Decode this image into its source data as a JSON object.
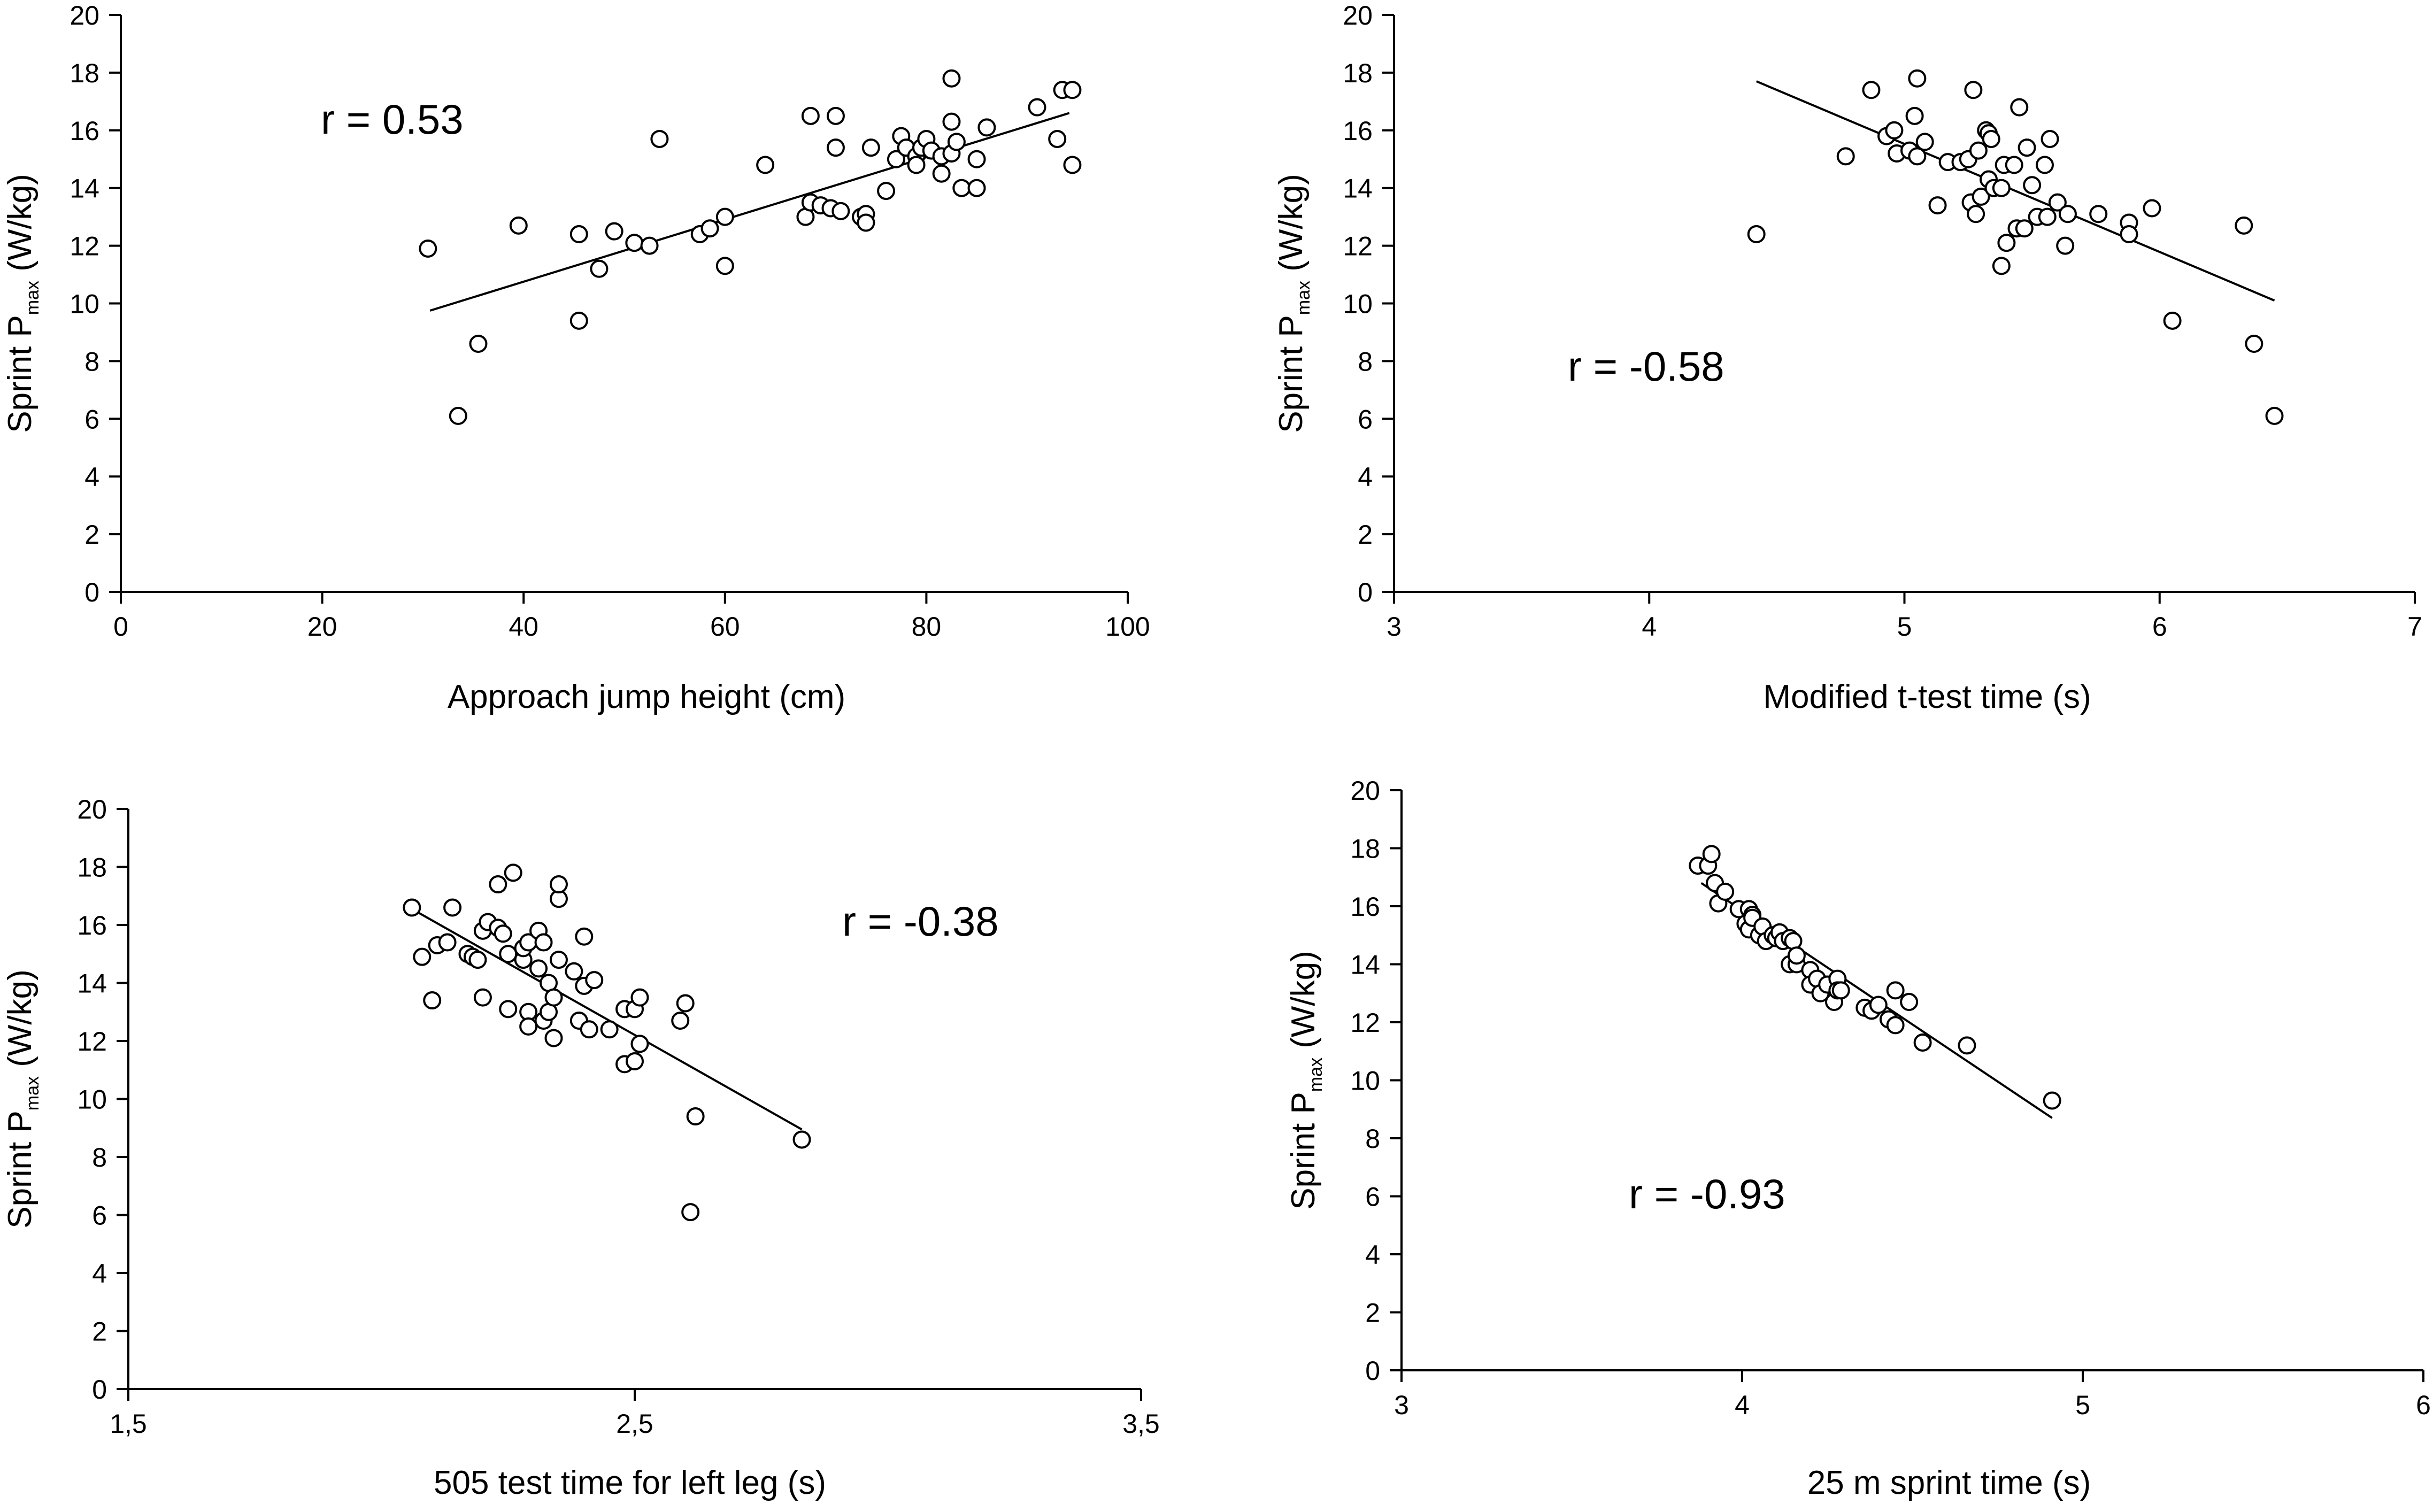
{
  "chart_data": [
    {
      "type": "scatter",
      "xlabel": "Approach jump height (cm)",
      "ylabel": "Sprint Pmax (W/kg)",
      "ylabel_main": "Sprint P",
      "ylabel_sub": "max",
      "ylabel_unit": " (W/kg)",
      "xlim": [
        0,
        100
      ],
      "ylim": [
        0,
        20
      ],
      "xticks": [
        0,
        20,
        40,
        60,
        80,
        100
      ],
      "xtick_labels": [
        "0",
        "20",
        "40",
        "60",
        "80",
        "100"
      ],
      "yticks": [
        0,
        2,
        4,
        6,
        8,
        10,
        12,
        14,
        16,
        18,
        20
      ],
      "ytick_labels": [
        "0",
        "2",
        "4",
        "6",
        "8",
        "10",
        "12",
        "14",
        "16",
        "18",
        "20"
      ],
      "annotation": "r = 0.53",
      "trendline": {
        "x": [
          30.7,
          94.2
        ],
        "y": [
          9.75,
          16.6
        ]
      },
      "points": [
        [
          30.5,
          11.9
        ],
        [
          33.5,
          6.1
        ],
        [
          35.5,
          8.6
        ],
        [
          39.5,
          12.7
        ],
        [
          45.5,
          12.4
        ],
        [
          45.5,
          9.4
        ],
        [
          47.5,
          11.2
        ],
        [
          49,
          12.5
        ],
        [
          51,
          12.1
        ],
        [
          52.5,
          12
        ],
        [
          53.5,
          15.7
        ],
        [
          57.5,
          12.4
        ],
        [
          58.5,
          12.6
        ],
        [
          60,
          13
        ],
        [
          60,
          11.3
        ],
        [
          64,
          14.8
        ],
        [
          68,
          13
        ],
        [
          68.5,
          13.5
        ],
        [
          68.5,
          16.5
        ],
        [
          69.5,
          13.4
        ],
        [
          70.5,
          13.3
        ],
        [
          71,
          16.5
        ],
        [
          71,
          15.4
        ],
        [
          71.5,
          13.2
        ],
        [
          73.5,
          13
        ],
        [
          74,
          13.1
        ],
        [
          74,
          12.8
        ],
        [
          74.5,
          15.4
        ],
        [
          76,
          13.9
        ],
        [
          77,
          15
        ],
        [
          77.5,
          15.8
        ],
        [
          78,
          15.4
        ],
        [
          79,
          15.1
        ],
        [
          79.5,
          15.4
        ],
        [
          79,
          14.8
        ],
        [
          80,
          15.7
        ],
        [
          80.5,
          15.3
        ],
        [
          81.5,
          15.1
        ],
        [
          81.5,
          14.5
        ],
        [
          82.5,
          15.2
        ],
        [
          82.5,
          16.3
        ],
        [
          82.5,
          17.8
        ],
        [
          83,
          15.6
        ],
        [
          83.5,
          14
        ],
        [
          85,
          14
        ],
        [
          85,
          15
        ],
        [
          86,
          16.1
        ],
        [
          91,
          16.8
        ],
        [
          93,
          15.7
        ],
        [
          93.5,
          17.4
        ],
        [
          94.5,
          17.4
        ],
        [
          94.5,
          14.8
        ]
      ]
    },
    {
      "type": "scatter",
      "xlabel": "Modified t-test time (s)",
      "ylabel": "Sprint Pmax (W/kg)",
      "ylabel_main": "Sprint P",
      "ylabel_sub": "max",
      "ylabel_unit": " (W/kg)",
      "xlim": [
        3,
        7
      ],
      "ylim": [
        0,
        20
      ],
      "xticks": [
        3,
        4,
        5,
        6,
        7
      ],
      "xtick_labels": [
        "3",
        "4",
        "5",
        "6",
        "7"
      ],
      "yticks": [
        0,
        2,
        4,
        6,
        8,
        10,
        12,
        14,
        16,
        18,
        20
      ],
      "ytick_labels": [
        "0",
        "2",
        "4",
        "6",
        "8",
        "10",
        "12",
        "14",
        "16",
        "18",
        "20"
      ],
      "annotation": "r = -0.58",
      "trendline": {
        "x": [
          4.42,
          6.45
        ],
        "y": [
          17.7,
          10.1
        ]
      },
      "points": [
        [
          4.42,
          12.4
        ],
        [
          4.77,
          15.1
        ],
        [
          4.87,
          17.4
        ],
        [
          4.93,
          15.8
        ],
        [
          4.96,
          16
        ],
        [
          4.97,
          15.2
        ],
        [
          5.02,
          15.3
        ],
        [
          5.04,
          16.5
        ],
        [
          5.05,
          17.8
        ],
        [
          5.05,
          15.1
        ],
        [
          5.08,
          15.6
        ],
        [
          5.13,
          13.4
        ],
        [
          5.17,
          14.9
        ],
        [
          5.22,
          14.9
        ],
        [
          5.25,
          15
        ],
        [
          5.26,
          13.5
        ],
        [
          5.27,
          17.4
        ],
        [
          5.28,
          13.1
        ],
        [
          5.29,
          15.3
        ],
        [
          5.3,
          13.7
        ],
        [
          5.32,
          16
        ],
        [
          5.33,
          15.9
        ],
        [
          5.33,
          14.3
        ],
        [
          5.34,
          15.7
        ],
        [
          5.35,
          14
        ],
        [
          5.38,
          14
        ],
        [
          5.38,
          11.3
        ],
        [
          5.39,
          14.8
        ],
        [
          5.4,
          12.1
        ],
        [
          5.43,
          14.8
        ],
        [
          5.44,
          12.6
        ],
        [
          5.45,
          16.8
        ],
        [
          5.47,
          12.6
        ],
        [
          5.48,
          15.4
        ],
        [
          5.5,
          14.1
        ],
        [
          5.52,
          13
        ],
        [
          5.55,
          14.8
        ],
        [
          5.56,
          13
        ],
        [
          5.57,
          15.7
        ],
        [
          5.6,
          13.5
        ],
        [
          5.63,
          12
        ],
        [
          5.64,
          13.1
        ],
        [
          5.76,
          13.1
        ],
        [
          5.88,
          12.8
        ],
        [
          5.88,
          12.4
        ],
        [
          5.97,
          13.3
        ],
        [
          6.05,
          9.4
        ],
        [
          6.33,
          12.7
        ],
        [
          6.37,
          8.6
        ],
        [
          6.45,
          6.1
        ]
      ]
    },
    {
      "type": "scatter",
      "xlabel": "505 test time for left leg (s)",
      "ylabel": "Sprint Pmax (W/kg)",
      "ylabel_main": "Sprint P",
      "ylabel_sub": "max",
      "ylabel_unit": " (W/kg)",
      "xlim": [
        1.5,
        3.5
      ],
      "ylim": [
        0,
        20
      ],
      "xticks": [
        1.5,
        2.5,
        3.5
      ],
      "xtick_labels": [
        "1,5",
        "2,5",
        "3,5"
      ],
      "yticks": [
        0,
        2,
        4,
        6,
        8,
        10,
        12,
        14,
        16,
        18,
        20
      ],
      "ytick_labels": [
        "0",
        "2",
        "4",
        "6",
        "8",
        "10",
        "12",
        "14",
        "16",
        "18",
        "20"
      ],
      "annotation": "r = -0.38",
      "trendline": {
        "x": [
          2.06,
          2.83
        ],
        "y": [
          16.55,
          8.95
        ]
      },
      "points": [
        [
          2.06,
          16.6
        ],
        [
          2.08,
          14.9
        ],
        [
          2.1,
          13.4
        ],
        [
          2.11,
          15.3
        ],
        [
          2.13,
          15.4
        ],
        [
          2.14,
          16.6
        ],
        [
          2.17,
          15
        ],
        [
          2.18,
          14.9
        ],
        [
          2.19,
          14.8
        ],
        [
          2.2,
          15.8
        ],
        [
          2.2,
          13.5
        ],
        [
          2.21,
          16.1
        ],
        [
          2.23,
          17.4
        ],
        [
          2.23,
          15.9
        ],
        [
          2.24,
          15.7
        ],
        [
          2.25,
          15
        ],
        [
          2.25,
          13.1
        ],
        [
          2.26,
          17.8
        ],
        [
          2.28,
          14.8
        ],
        [
          2.28,
          15.2
        ],
        [
          2.29,
          15.4
        ],
        [
          2.29,
          13
        ],
        [
          2.29,
          12.5
        ],
        [
          2.31,
          15.8
        ],
        [
          2.31,
          14.5
        ],
        [
          2.32,
          15.4
        ],
        [
          2.32,
          12.7
        ],
        [
          2.33,
          13
        ],
        [
          2.33,
          14
        ],
        [
          2.34,
          13.5
        ],
        [
          2.34,
          12.1
        ],
        [
          2.35,
          14.8
        ],
        [
          2.35,
          16.9
        ],
        [
          2.35,
          17.4
        ],
        [
          2.38,
          14.4
        ],
        [
          2.39,
          12.7
        ],
        [
          2.4,
          15.6
        ],
        [
          2.4,
          13.9
        ],
        [
          2.41,
          12.4
        ],
        [
          2.42,
          14.1
        ],
        [
          2.45,
          12.4
        ],
        [
          2.48,
          13.1
        ],
        [
          2.48,
          11.2
        ],
        [
          2.5,
          13.1
        ],
        [
          2.5,
          11.3
        ],
        [
          2.51,
          11.9
        ],
        [
          2.51,
          13.5
        ],
        [
          2.59,
          12.7
        ],
        [
          2.6,
          13.3
        ],
        [
          2.61,
          6.1
        ],
        [
          2.62,
          9.4
        ],
        [
          2.83,
          8.6
        ]
      ]
    },
    {
      "type": "scatter",
      "xlabel": "25 m sprint time (s)",
      "ylabel": "Sprint Pmax (W/kg)",
      "ylabel_main": "Sprint P",
      "ylabel_sub": "max",
      "ylabel_unit": " (W/kg)",
      "xlim": [
        3,
        6
      ],
      "ylim": [
        0,
        20
      ],
      "xticks": [
        3,
        4,
        5,
        6
      ],
      "xtick_labels": [
        "3",
        "4",
        "5",
        "6"
      ],
      "yticks": [
        0,
        2,
        4,
        6,
        8,
        10,
        12,
        14,
        16,
        18,
        20
      ],
      "ytick_labels": [
        "0",
        "2",
        "4",
        "6",
        "8",
        "10",
        "12",
        "14",
        "16",
        "18",
        "20"
      ],
      "annotation": "r = -0.93",
      "trendline": {
        "x": [
          3.88,
          4.91
        ],
        "y": [
          16.8,
          8.7
        ]
      },
      "points": [
        [
          3.87,
          17.4
        ],
        [
          3.9,
          17.4
        ],
        [
          3.91,
          17.8
        ],
        [
          3.92,
          16.8
        ],
        [
          3.93,
          16.1
        ],
        [
          3.95,
          16.5
        ],
        [
          3.99,
          15.9
        ],
        [
          4.01,
          15.4
        ],
        [
          4.02,
          15.9
        ],
        [
          4.02,
          15.2
        ],
        [
          4.03,
          15.7
        ],
        [
          4.03,
          15.6
        ],
        [
          4.05,
          15
        ],
        [
          4.06,
          15.3
        ],
        [
          4.07,
          14.8
        ],
        [
          4.09,
          15
        ],
        [
          4.1,
          14.9
        ],
        [
          4.11,
          15.1
        ],
        [
          4.12,
          14.8
        ],
        [
          4.14,
          14.9
        ],
        [
          4.14,
          14
        ],
        [
          4.15,
          14.8
        ],
        [
          4.16,
          14
        ],
        [
          4.16,
          14.3
        ],
        [
          4.2,
          13.8
        ],
        [
          4.2,
          13.3
        ],
        [
          4.22,
          13.5
        ],
        [
          4.23,
          13
        ],
        [
          4.25,
          13.3
        ],
        [
          4.27,
          12.7
        ],
        [
          4.28,
          13.5
        ],
        [
          4.28,
          13.1
        ],
        [
          4.29,
          13.1
        ],
        [
          4.36,
          12.5
        ],
        [
          4.38,
          12.4
        ],
        [
          4.4,
          12.6
        ],
        [
          4.43,
          12.1
        ],
        [
          4.45,
          11.9
        ],
        [
          4.45,
          13.1
        ],
        [
          4.49,
          12.7
        ],
        [
          4.53,
          11.3
        ],
        [
          4.66,
          11.2
        ],
        [
          4.91,
          9.3
        ]
      ]
    }
  ]
}
